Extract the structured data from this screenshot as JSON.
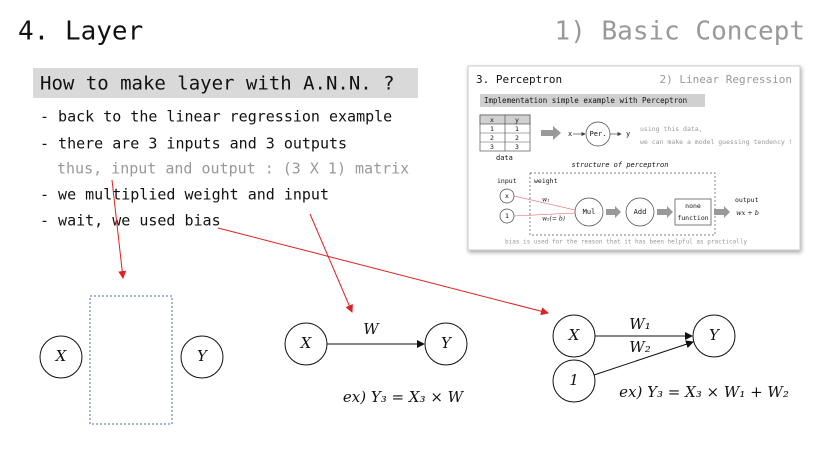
{
  "header": {
    "title": "4. Layer",
    "section": "1) Basic Concept"
  },
  "subtitle": "How to make layer with A.N.N. ?",
  "bullets": [
    "- back to the linear regression example",
    "- there are 3 inputs and 3 outputs",
    "thus, input and output : (3 X 1) matrix",
    "- we multiplied weight and input",
    "- wait, we used bias"
  ],
  "inset": {
    "title": "3. Perceptron",
    "section": "2) Linear Regression",
    "banner": "Implementation simple example with Perceptron",
    "table": {
      "header": [
        "x",
        "y"
      ],
      "rows": [
        [
          1,
          1
        ],
        [
          2,
          2
        ],
        [
          3,
          3
        ]
      ],
      "caption": "data"
    },
    "flow": {
      "input": "x",
      "node": "Per.",
      "output": "y"
    },
    "notes": [
      "using this data,",
      "we can make a model guessing tendency !"
    ],
    "structure": {
      "title": "structure of perceptron",
      "input_label": "input",
      "weight_label": "weight",
      "inputs": [
        "x",
        "1"
      ],
      "weights": [
        "w₁",
        "w₂(= b)"
      ],
      "ops": [
        "Mul",
        "Add"
      ],
      "activation": [
        "none",
        "function"
      ],
      "output_label": "output",
      "output": "wx + b"
    },
    "footer": "bias is used for the reason that it has been helpful as practically"
  },
  "diagrams": [
    {
      "nodes": [
        "X",
        "Y"
      ]
    },
    {
      "nodes": [
        "X",
        "Y"
      ],
      "edge": "W",
      "formula": "ex) Y₃ = X₃ × W"
    },
    {
      "nodes": [
        "X",
        "1",
        "Y"
      ],
      "edges": [
        "W₁",
        "W₂"
      ],
      "formula": "ex) Y₃ = X₃ × W₁ + W₂"
    }
  ]
}
